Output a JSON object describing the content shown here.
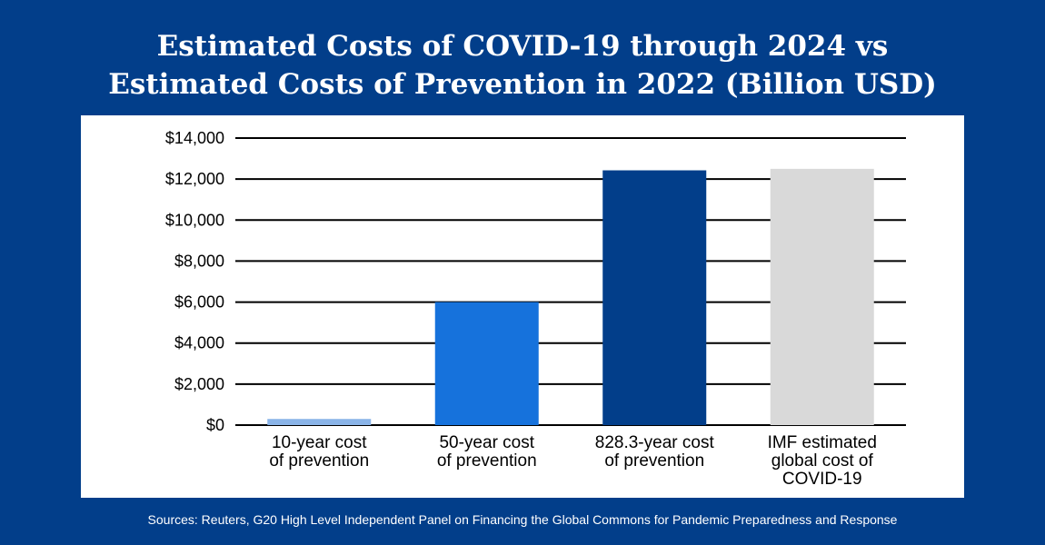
{
  "title_line1": "Estimated Costs of COVID-19 through 2024 vs",
  "title_line2": "Estimated Costs of Prevention in 2022 (Billion USD)",
  "source": "Sources: Reuters, G20 High Level Independent Panel on Financing the  Global Commons for Pandemic Preparedness and Response",
  "chart_data": {
    "type": "bar",
    "title": "Estimated Costs of COVID-19 through 2024 vs Estimated Costs of Prevention in 2022 (Billion USD)",
    "categories": [
      "10-year cost of prevention",
      "50-year cost of prevention",
      "828.3-year cost of prevention",
      "IMF estimated global cost of COVID-19"
    ],
    "category_lines": [
      [
        "10-year cost",
        "of prevention"
      ],
      [
        "50-year cost",
        "of prevention"
      ],
      [
        "828.3-year cost",
        "of prevention"
      ],
      [
        "IMF estimated",
        "global cost of",
        "COVID-19"
      ]
    ],
    "values": [
      300,
      6000,
      12426,
      12500
    ],
    "colors": [
      "#8ab4e8",
      "#1672dc",
      "#023e8a",
      "#d9d9d9"
    ],
    "ylim": [
      0,
      14000
    ],
    "yticks": [
      0,
      2000,
      4000,
      6000,
      8000,
      10000,
      12000,
      14000
    ],
    "ytick_labels": [
      "$0",
      "$2,000",
      "$4,000",
      "$6,000",
      "$8,000",
      "$10,000",
      "$12,000",
      "$14,000"
    ],
    "grid": true,
    "xlabel": "",
    "ylabel": ""
  }
}
